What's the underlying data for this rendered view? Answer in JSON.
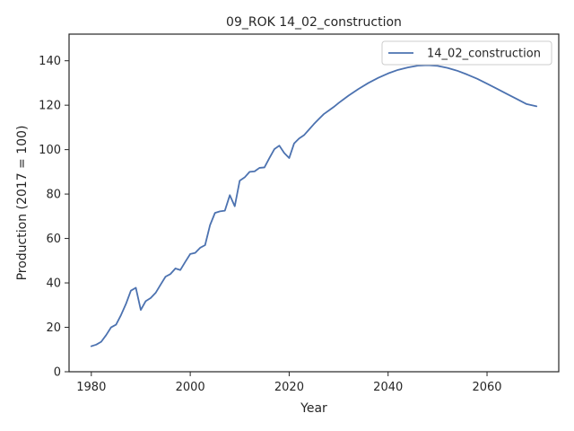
{
  "chart_data": {
    "type": "line",
    "title": "09_ROK 14_02_construction",
    "xlabel": "Year",
    "ylabel": "Production (2017 = 100)",
    "xlim": [
      1975.5,
      2074.5
    ],
    "ylim": [
      0,
      152
    ],
    "xticks": [
      1980,
      2000,
      2020,
      2040,
      2060
    ],
    "yticks": [
      0,
      20,
      40,
      60,
      80,
      100,
      120,
      140
    ],
    "grid": false,
    "legend_position": "top-right",
    "series": [
      {
        "name": "14_02_construction",
        "color": "#4c72b0",
        "x": [
          1980,
          1981,
          1982,
          1983,
          1984,
          1985,
          1986,
          1987,
          1988,
          1989,
          1990,
          1991,
          1992,
          1993,
          1994,
          1995,
          1996,
          1997,
          1998,
          1999,
          2000,
          2001,
          2002,
          2003,
          2004,
          2005,
          2006,
          2007,
          2008,
          2009,
          2010,
          2011,
          2012,
          2013,
          2014,
          2015,
          2016,
          2017,
          2018,
          2019,
          2020,
          2021,
          2022,
          2023,
          2024,
          2025,
          2026,
          2027,
          2028,
          2029,
          2030,
          2032,
          2034,
          2036,
          2038,
          2040,
          2042,
          2044,
          2046,
          2048,
          2050,
          2052,
          2054,
          2056,
          2058,
          2060,
          2062,
          2064,
          2066,
          2068,
          2070
        ],
        "y": [
          11.5,
          12.2,
          13.5,
          16.5,
          20.0,
          21.2,
          25.5,
          30.5,
          36.5,
          37.8,
          27.8,
          31.8,
          33.2,
          35.5,
          39.2,
          42.8,
          44.0,
          46.5,
          45.8,
          49.5,
          53.0,
          53.5,
          55.8,
          57.0,
          66.0,
          71.5,
          72.2,
          72.5,
          79.5,
          74.5,
          86.0,
          87.5,
          90.0,
          90.2,
          91.8,
          92.0,
          96.2,
          100.2,
          101.8,
          98.5,
          96.2,
          102.8,
          105.0,
          106.5,
          109.0,
          111.5,
          113.8,
          116.0,
          117.6,
          119.2,
          121.0,
          124.3,
          127.3,
          130.0,
          132.3,
          134.3,
          135.9,
          137.0,
          137.8,
          138.0,
          137.7,
          136.8,
          135.5,
          133.8,
          131.9,
          129.7,
          127.4,
          125.1,
          122.8,
          120.5,
          119.5
        ]
      }
    ]
  }
}
